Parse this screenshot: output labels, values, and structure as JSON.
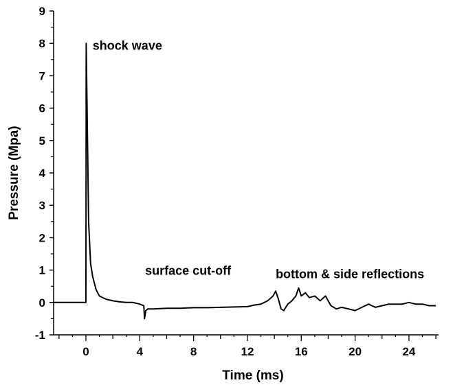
{
  "chart_data": {
    "type": "line",
    "title": "",
    "xlabel": "Time (ms)",
    "ylabel": "Pressure (Mpa)",
    "xlim": [
      -2.4,
      26.2
    ],
    "ylim": [
      -1,
      9
    ],
    "x_ticks": [
      0,
      4,
      8,
      12,
      16,
      20,
      24
    ],
    "x_tick_labels": [
      "0",
      "4",
      "8",
      "12",
      "16",
      "20",
      "24"
    ],
    "y_ticks": [
      -1,
      0,
      1,
      2,
      3,
      4,
      5,
      6,
      7,
      8,
      9
    ],
    "y_tick_labels": [
      "-1",
      "0",
      "1",
      "2",
      "3",
      "4",
      "5",
      "6",
      "7",
      "8",
      "9"
    ],
    "grid": false,
    "legend": "none",
    "line_color": "#000000",
    "series": [
      {
        "x": [
          -2.4,
          0.0,
          0.02,
          0.1,
          0.2,
          0.35,
          0.5,
          0.75,
          1.0,
          1.5,
          2.0,
          2.5,
          3.0,
          3.5,
          4.0,
          4.3,
          4.35,
          4.45,
          4.6,
          5.0,
          6.0,
          7.0,
          8.0,
          9.0,
          10.0,
          11.0,
          12.0,
          12.5,
          13.0,
          13.5,
          13.9,
          14.1,
          14.3,
          14.5,
          14.7,
          15.0,
          15.3,
          15.6,
          15.8,
          16.0,
          16.3,
          16.6,
          17.0,
          17.4,
          17.8,
          18.2,
          18.6,
          19.0,
          19.5,
          20.0,
          20.5,
          21.0,
          21.5,
          22.0,
          22.5,
          23.0,
          23.5,
          24.0,
          24.5,
          25.0,
          25.5,
          26.0
        ],
        "y": [
          0.0,
          0.0,
          8.0,
          5.5,
          2.5,
          1.2,
          0.8,
          0.4,
          0.2,
          0.1,
          0.05,
          0.02,
          0.0,
          0.0,
          -0.05,
          -0.1,
          -0.5,
          -0.25,
          -0.2,
          -0.2,
          -0.18,
          -0.18,
          -0.16,
          -0.16,
          -0.15,
          -0.14,
          -0.13,
          -0.08,
          -0.05,
          0.05,
          0.2,
          0.35,
          0.1,
          -0.2,
          -0.25,
          -0.05,
          0.05,
          0.2,
          0.45,
          0.2,
          0.3,
          0.15,
          0.2,
          0.05,
          0.2,
          -0.1,
          -0.2,
          -0.15,
          -0.2,
          -0.25,
          -0.15,
          -0.05,
          -0.15,
          -0.1,
          -0.05,
          -0.05,
          -0.05,
          0.0,
          -0.05,
          -0.05,
          -0.1,
          -0.1
        ]
      }
    ],
    "annotations": [
      {
        "text": "shock wave",
        "x": 0.5,
        "y": 7.8
      },
      {
        "text": "surface cut-off",
        "x": 4.4,
        "y": 0.85
      },
      {
        "text": "bottom & side reflections",
        "x": 14.1,
        "y": 0.75
      }
    ]
  }
}
